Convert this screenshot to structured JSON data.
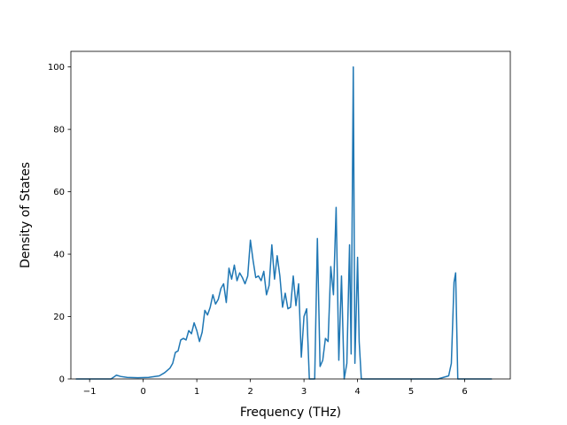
{
  "chart_data": {
    "type": "line",
    "xlabel": "Frequency (THz)",
    "ylabel": "Density of States",
    "xlim": [
      -1.35,
      6.85
    ],
    "ylim": [
      0,
      105
    ],
    "x_ticks": [
      -1,
      0,
      1,
      2,
      3,
      4,
      5,
      6
    ],
    "x_tick_labels": [
      "−1",
      "0",
      "1",
      "2",
      "3",
      "4",
      "5",
      "6"
    ],
    "y_ticks": [
      0,
      20,
      40,
      60,
      80,
      100
    ],
    "y_tick_labels": [
      "0",
      "20",
      "40",
      "60",
      "80",
      "100"
    ],
    "grid": false,
    "legend": "none",
    "series": [
      {
        "color": "#1f77b4",
        "x": [
          -1.25,
          -0.6,
          -0.5,
          -0.42,
          -0.3,
          -0.1,
          0.1,
          0.3,
          0.4,
          0.5,
          0.55,
          0.6,
          0.65,
          0.7,
          0.75,
          0.8,
          0.85,
          0.9,
          0.95,
          1.0,
          1.05,
          1.1,
          1.15,
          1.2,
          1.25,
          1.3,
          1.35,
          1.4,
          1.45,
          1.5,
          1.55,
          1.6,
          1.65,
          1.7,
          1.75,
          1.8,
          1.85,
          1.9,
          1.95,
          2.0,
          2.05,
          2.1,
          2.15,
          2.2,
          2.25,
          2.3,
          2.35,
          2.4,
          2.45,
          2.5,
          2.55,
          2.6,
          2.65,
          2.7,
          2.75,
          2.8,
          2.85,
          2.9,
          2.95,
          3.0,
          3.05,
          3.1,
          3.12,
          3.2,
          3.25,
          3.3,
          3.35,
          3.4,
          3.45,
          3.5,
          3.55,
          3.6,
          3.65,
          3.7,
          3.75,
          3.8,
          3.85,
          3.88,
          3.92,
          3.95,
          3.98,
          4.0,
          4.03,
          4.07,
          4.1,
          4.13,
          4.18,
          4.5,
          5.0,
          5.5,
          5.7,
          5.75,
          5.8,
          5.83,
          5.87,
          5.9,
          6.0,
          6.5
        ],
        "y": [
          0,
          0,
          1.2,
          0.8,
          0.5,
          0.4,
          0.5,
          1.0,
          2.0,
          3.5,
          5.0,
          8.5,
          9.0,
          12.5,
          13.0,
          12.5,
          15.5,
          14.5,
          18.0,
          15.5,
          12.0,
          15.0,
          22.0,
          20.5,
          23.0,
          27.0,
          24.0,
          25.5,
          29.0,
          30.5,
          24.5,
          35.5,
          32.0,
          36.5,
          31.5,
          34.0,
          32.5,
          30.5,
          33.0,
          44.5,
          38.0,
          32.5,
          33.0,
          31.5,
          34.5,
          27.0,
          30.0,
          43.0,
          32.0,
          39.5,
          33.0,
          23.0,
          27.5,
          22.5,
          23.0,
          33.0,
          23.5,
          30.5,
          7.0,
          20.0,
          22.5,
          0,
          0,
          0,
          45.0,
          4.0,
          6.0,
          13.0,
          12.0,
          36.0,
          27.0,
          55.0,
          6.0,
          33.0,
          0,
          5.0,
          43.0,
          8.0,
          100.0,
          5.0,
          25.0,
          39.0,
          12.0,
          0,
          0,
          0,
          0,
          0,
          0,
          0,
          1.0,
          5.0,
          31.0,
          34.0,
          0,
          0,
          0,
          0
        ]
      }
    ]
  }
}
